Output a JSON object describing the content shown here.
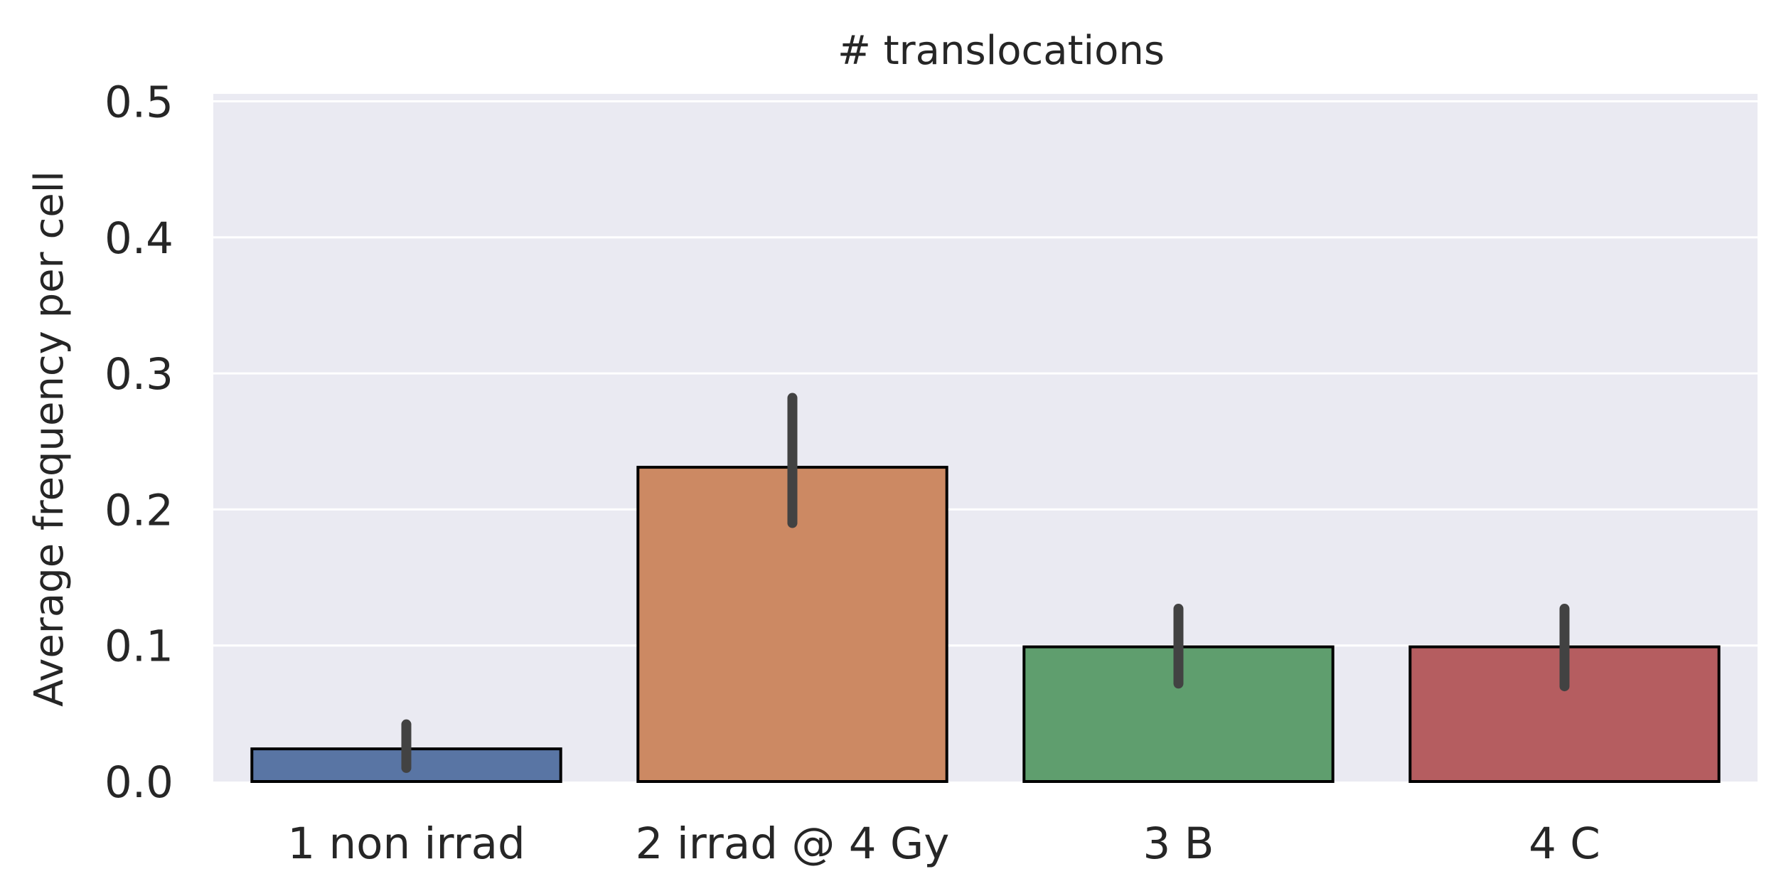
{
  "chart_data": {
    "type": "bar",
    "title": "# translocations",
    "xlabel": "",
    "ylabel": "Average frequency per cell",
    "ylim": [
      0,
      0.5
    ],
    "yticks": [
      "0.0",
      "0.1",
      "0.2",
      "0.3",
      "0.4",
      "0.5"
    ],
    "yticks_values": [
      0,
      0.1,
      0.2,
      0.3,
      0.4,
      0.5
    ],
    "grid": true,
    "categories": [
      "1 non irrad",
      "2 irrad @ 4 Gy",
      "3 B",
      "4 C"
    ],
    "values": [
      0.024,
      0.231,
      0.099,
      0.099
    ],
    "error_low": [
      0.01,
      0.19,
      0.072,
      0.07
    ],
    "error_high": [
      0.042,
      0.282,
      0.127,
      0.127
    ],
    "colors": [
      "#5975a4",
      "#cc8963",
      "#5f9e6e",
      "#b55d60"
    ],
    "background_color": "#eaeaf2",
    "grid_color": "#ffffff",
    "bar_edge_color": "#000000",
    "error_bar_color": "#424242"
  }
}
